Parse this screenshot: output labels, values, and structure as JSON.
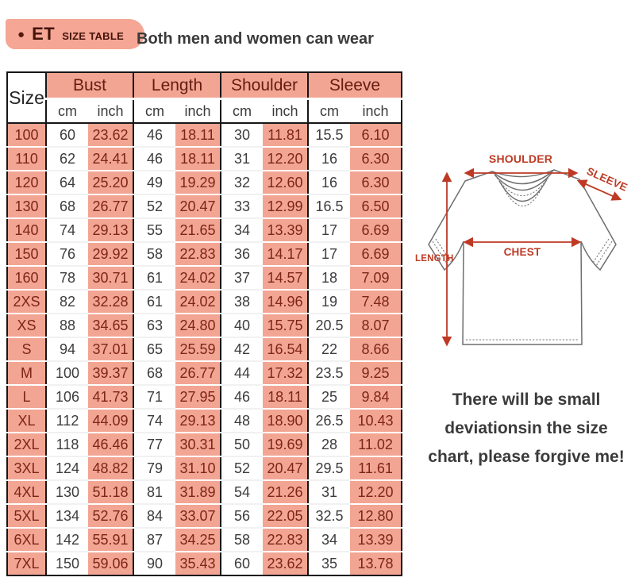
{
  "header": {
    "badge": {
      "bullet": "●",
      "title": "ET",
      "subtitle": "SIZE TABLE"
    },
    "tagline": "Both men and women can wear"
  },
  "table": {
    "size_label": "Size",
    "groups": [
      "Bust",
      "Length",
      "Shoulder",
      "Sleeve"
    ],
    "unit_cm": "cm",
    "unit_inch": "inch",
    "rows": [
      [
        "100",
        "60",
        "23.62",
        "46",
        "18.11",
        "30",
        "11.81",
        "15.5",
        "6.10"
      ],
      [
        "110",
        "62",
        "24.41",
        "46",
        "18.11",
        "31",
        "12.20",
        "16",
        "6.30"
      ],
      [
        "120",
        "64",
        "25.20",
        "49",
        "19.29",
        "32",
        "12.60",
        "16",
        "6.30"
      ],
      [
        "130",
        "68",
        "26.77",
        "52",
        "20.47",
        "33",
        "12.99",
        "16.5",
        "6.50"
      ],
      [
        "140",
        "74",
        "29.13",
        "55",
        "21.65",
        "34",
        "13.39",
        "17",
        "6.69"
      ],
      [
        "150",
        "76",
        "29.92",
        "58",
        "22.83",
        "36",
        "14.17",
        "17",
        "6.69"
      ],
      [
        "160",
        "78",
        "30.71",
        "61",
        "24.02",
        "37",
        "14.57",
        "18",
        "7.09"
      ],
      [
        "2XS",
        "82",
        "32.28",
        "61",
        "24.02",
        "38",
        "14.96",
        "19",
        "7.48"
      ],
      [
        "XS",
        "88",
        "34.65",
        "63",
        "24.80",
        "40",
        "15.75",
        "20.5",
        "8.07"
      ],
      [
        "S",
        "94",
        "37.01",
        "65",
        "25.59",
        "42",
        "16.54",
        "22",
        "8.66"
      ],
      [
        "M",
        "100",
        "39.37",
        "68",
        "26.77",
        "44",
        "17.32",
        "23.5",
        "9.25"
      ],
      [
        "L",
        "106",
        "41.73",
        "71",
        "27.95",
        "46",
        "18.11",
        "25",
        "9.84"
      ],
      [
        "XL",
        "112",
        "44.09",
        "74",
        "29.13",
        "48",
        "18.90",
        "26.5",
        "10.43"
      ],
      [
        "2XL",
        "118",
        "46.46",
        "77",
        "30.31",
        "50",
        "19.69",
        "28",
        "11.02"
      ],
      [
        "3XL",
        "124",
        "48.82",
        "79",
        "31.10",
        "52",
        "20.47",
        "29.5",
        "11.61"
      ],
      [
        "4XL",
        "130",
        "51.18",
        "81",
        "31.89",
        "54",
        "21.26",
        "31",
        "12.20"
      ],
      [
        "5XL",
        "134",
        "52.76",
        "84",
        "33.07",
        "56",
        "22.05",
        "32.5",
        "12.80"
      ],
      [
        "6XL",
        "142",
        "55.91",
        "87",
        "34.25",
        "58",
        "22.83",
        "34",
        "13.39"
      ],
      [
        "7XL",
        "150",
        "59.06",
        "90",
        "35.43",
        "60",
        "23.62",
        "35",
        "13.78"
      ]
    ]
  },
  "diagram": {
    "shoulder_label": "SHOULDER",
    "sleeve_label": "SLEEVE",
    "length_label": "LENGTH",
    "chest_label": "CHEST"
  },
  "note": {
    "line1": "There will be small",
    "line2": "deviationsin the size",
    "line3": "chart, please forgive me!"
  },
  "colors": {
    "salmon": "#F3A593",
    "badge_bg": "#F5A694",
    "header_text": "#641E11",
    "cell_text_red": "#7E2516",
    "body_text": "#3B3B3B",
    "arrow_red": "#BE3A24",
    "border": "#161616"
  }
}
